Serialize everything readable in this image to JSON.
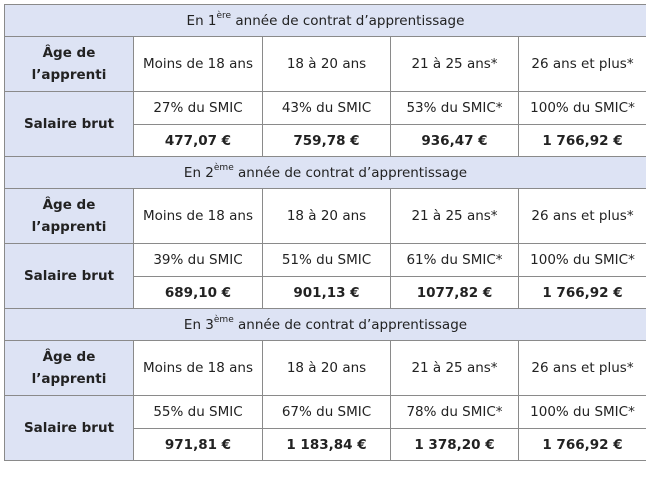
{
  "sections": [
    {
      "title_pre": "En 1",
      "title_sup": "ère",
      "title_post": " année de contrat d’apprentissage",
      "age_label": "Âge de l’apprenti",
      "salary_label": "Salaire brut",
      "ages": [
        "Moins de 18 ans",
        "18 à 20 ans",
        "21 à 25 ans*",
        "26 ans et plus*"
      ],
      "percents": [
        "27% du SMIC",
        "43% du SMIC",
        "53% du SMIC*",
        "100% du SMIC*"
      ],
      "amounts": [
        "477,07 €",
        "759,78 €",
        "936,47 €",
        "1 766,92 €"
      ]
    },
    {
      "title_pre": "En 2",
      "title_sup": "ème",
      "title_post": " année de contrat d’apprentissage",
      "age_label": "Âge de l’apprenti",
      "salary_label": "Salaire brut",
      "ages": [
        "Moins de 18 ans",
        "18 à 20 ans",
        "21 à 25 ans*",
        "26 ans et plus*"
      ],
      "percents": [
        "39% du SMIC",
        "51% du SMIC",
        "61% du SMIC*",
        "100% du SMIC*"
      ],
      "amounts": [
        "689,10 €",
        "901,13 €",
        "1077,82 €",
        "1 766,92 €"
      ]
    },
    {
      "title_pre": "En 3",
      "title_sup": "ème",
      "title_post": " année de contrat d’apprentissage",
      "age_label": "Âge de l’apprenti",
      "salary_label": "Salaire brut",
      "ages": [
        "Moins de 18 ans",
        "18 à 20 ans",
        "21 à 25 ans*",
        "26 ans et plus*"
      ],
      "percents": [
        "55% du SMIC",
        "67% du SMIC",
        "78% du SMIC*",
        "100% du SMIC*"
      ],
      "amounts": [
        "971,81 €",
        "1 183,84 €",
        "1 378,20 €",
        "1 766,92 €"
      ]
    }
  ]
}
